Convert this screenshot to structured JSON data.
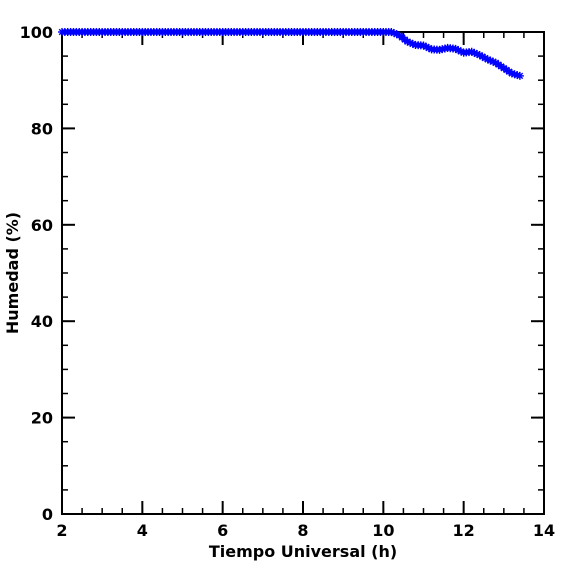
{
  "chart_data": {
    "type": "scatter",
    "xlabel": "Tiempo Universal (h)",
    "ylabel": "Humedad (%)",
    "xlim": [
      2,
      14
    ],
    "ylim": [
      0,
      100
    ],
    "x_ticks": [
      2,
      4,
      6,
      8,
      10,
      12,
      14
    ],
    "y_ticks": [
      0,
      20,
      40,
      60,
      80,
      100
    ],
    "x_ticks_minor_step": 0.5,
    "y_ticks_minor_step": 5,
    "marker": "asterisk",
    "color": "#0000ff",
    "series": [
      {
        "x": [
          2.0,
          2.5,
          3.0,
          3.5,
          4.0,
          4.5,
          5.0,
          5.5,
          6.0,
          6.5,
          7.0,
          7.5,
          8.0,
          8.5,
          9.0,
          9.5,
          10.0,
          10.2,
          10.4,
          10.6,
          10.8,
          11.0,
          11.2,
          11.4,
          11.6,
          11.8,
          12.0,
          12.2,
          12.4,
          12.6,
          12.8,
          13.0,
          13.2,
          13.4
        ],
        "values": [
          100,
          100,
          100,
          100,
          100,
          100,
          100,
          100,
          100,
          100,
          100,
          100,
          100,
          100,
          100,
          100,
          100,
          100,
          99.3,
          98.0,
          97.3,
          97.2,
          96.4,
          96.3,
          96.7,
          96.5,
          95.7,
          95.9,
          95.2,
          94.3,
          93.6,
          92.5,
          91.4,
          90.9
        ]
      }
    ]
  }
}
